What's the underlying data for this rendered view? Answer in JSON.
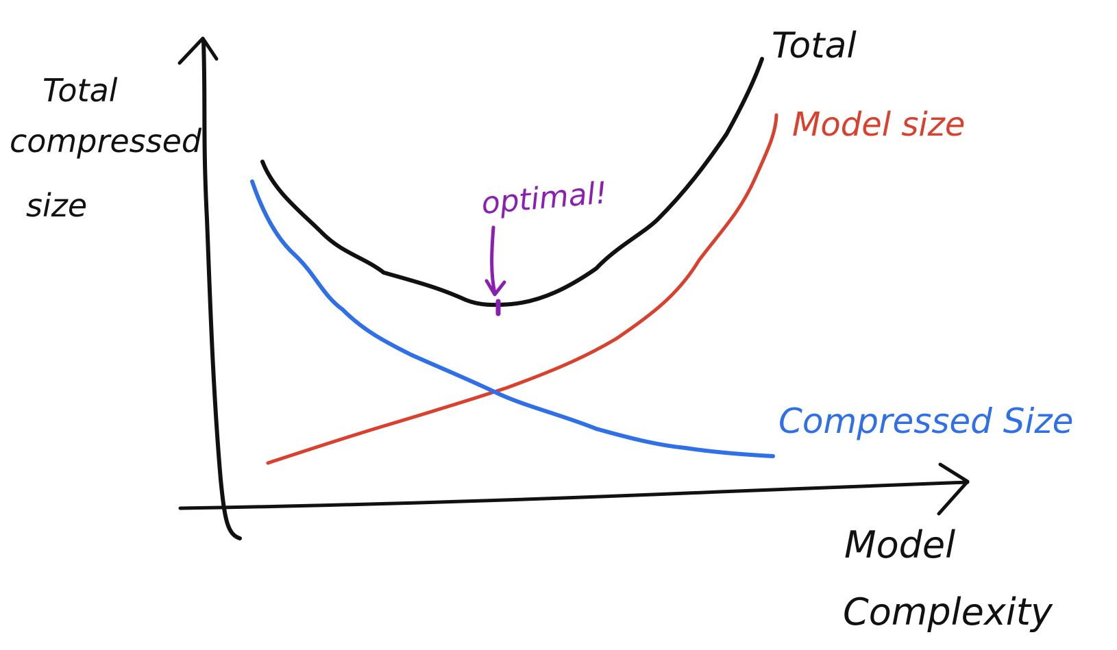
{
  "colors": {
    "axis": "#111111",
    "total": "#111111",
    "model_size": "#d9412e",
    "compressed_size": "#2f6fe8",
    "optimal": "#8b1fb4"
  },
  "y_axis_label": [
    "Total",
    "compressed",
    "size"
  ],
  "x_axis_label": [
    "Model",
    "Complexity"
  ],
  "curves": {
    "total": "Total",
    "model_size": "Model size",
    "compressed_size": "Compressed Size"
  },
  "annotation": "optimal!"
}
